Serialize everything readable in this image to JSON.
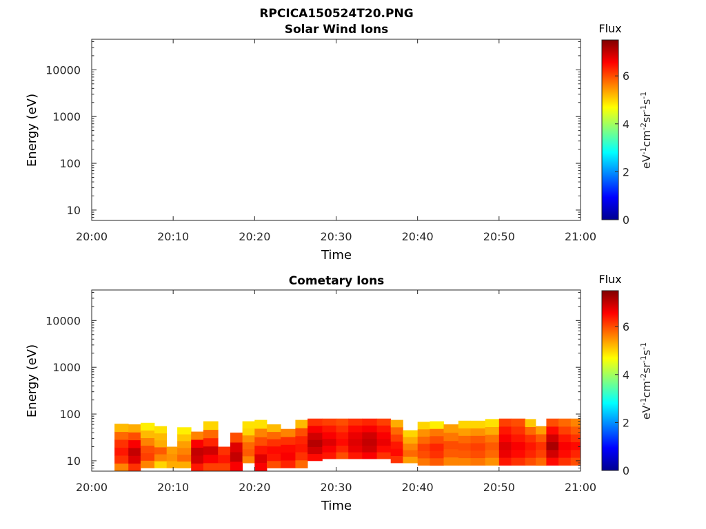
{
  "figure": {
    "title": "RPCICA150524T20.PNG"
  },
  "colormap": {
    "name": "jet",
    "stops": [
      "#00008f",
      "#0000ff",
      "#0080ff",
      "#00ffff",
      "#80ff80",
      "#ffff00",
      "#ff8000",
      "#ff0000",
      "#800000"
    ]
  },
  "chart_data": [
    {
      "type": "heatmap",
      "title": "Solar Wind Ions",
      "xlabel": "Time",
      "ylabel": "Energy (eV)",
      "x_ticks": [
        "20:00",
        "20:10",
        "20:20",
        "20:30",
        "20:40",
        "20:50",
        "21:00"
      ],
      "x_range_minutes": [
        0,
        60
      ],
      "y_scale": "log",
      "y_ticks": [
        "10",
        "100",
        "1000",
        "10000"
      ],
      "ylim": [
        6,
        45000
      ],
      "colorbar": {
        "title": "Flux",
        "label": "eV-1cm-2sr-1s-1",
        "ticks": [
          "0",
          "2",
          "4",
          "6"
        ],
        "range": [
          0,
          7.5
        ]
      },
      "blocks": []
    },
    {
      "type": "heatmap",
      "title": "Cometary Ions",
      "xlabel": "Time",
      "ylabel": "Energy (eV)",
      "x_ticks": [
        "20:00",
        "20:10",
        "20:20",
        "20:30",
        "20:40",
        "20:50",
        "21:00"
      ],
      "x_range_minutes": [
        0,
        60
      ],
      "y_scale": "log",
      "y_ticks": [
        "10",
        "100",
        "1000",
        "10000"
      ],
      "ylim": [
        6,
        45000
      ],
      "colorbar": {
        "title": "Flux",
        "label": "eV-1cm-2sr-1s-1",
        "ticks": [
          "0",
          "2",
          "4",
          "6"
        ],
        "range": [
          0,
          7.5
        ]
      },
      "blocks": [
        {
          "t0": 2.8,
          "t1": 4.5,
          "emin": 6,
          "emax": 62,
          "levels": [
            5.6,
            6.2,
            6.4,
            6.2,
            5.8,
            5.2
          ]
        },
        {
          "t0": 4.5,
          "t1": 6.0,
          "emin": 6,
          "emax": 60,
          "levels": [
            6.2,
            6.8,
            7.0,
            6.6,
            6.0,
            5.3
          ]
        },
        {
          "t0": 6.0,
          "t1": 7.7,
          "emin": 7,
          "emax": 65,
          "levels": [
            5.6,
            6.1,
            6.0,
            5.6,
            5.2,
            4.8
          ]
        },
        {
          "t0": 7.7,
          "t1": 9.2,
          "emin": 7,
          "emax": 55,
          "levels": [
            5.0,
            5.6,
            5.9,
            5.3,
            5.2,
            4.9
          ]
        },
        {
          "t0": 9.2,
          "t1": 10.5,
          "emin": 7,
          "emax": 20,
          "levels": [
            5.3,
            5.5,
            5.4
          ]
        },
        {
          "t0": 10.5,
          "t1": 12.2,
          "emin": 7,
          "emax": 52,
          "levels": [
            5.3,
            5.8,
            5.6,
            5.4,
            5.1,
            4.8
          ]
        },
        {
          "t0": 12.2,
          "t1": 13.7,
          "emin": 6,
          "emax": 42,
          "levels": [
            6.4,
            6.9,
            7.0,
            6.6,
            5.6
          ]
        },
        {
          "t0": 13.7,
          "t1": 15.5,
          "emin": 6,
          "emax": 70,
          "levels": [
            6.1,
            6.6,
            6.9,
            6.3,
            5.8,
            5.0
          ]
        },
        {
          "t0": 15.5,
          "t1": 17.0,
          "emin": 6,
          "emax": 20,
          "levels": [
            6.1,
            6.4,
            6.2
          ]
        },
        {
          "t0": 17.0,
          "t1": 18.5,
          "emin": 6,
          "emax": 40,
          "levels": [
            6.6,
            7.0,
            6.8,
            6.0
          ]
        },
        {
          "t0": 18.5,
          "t1": 20.0,
          "emin": 9,
          "emax": 70,
          "levels": [
            5.6,
            5.9,
            5.8,
            5.5,
            5.0,
            4.9
          ]
        },
        {
          "t0": 20.0,
          "t1": 21.5,
          "emin": 6,
          "emax": 75,
          "levels": [
            6.6,
            6.8,
            6.4,
            6.0,
            5.6,
            4.9
          ]
        },
        {
          "t0": 21.5,
          "t1": 23.2,
          "emin": 7,
          "emax": 60,
          "levels": [
            6.0,
            6.4,
            6.5,
            6.2,
            5.8,
            5.2
          ]
        },
        {
          "t0": 23.2,
          "t1": 25.0,
          "emin": 7,
          "emax": 48,
          "levels": [
            6.3,
            6.6,
            6.5,
            6.2,
            5.6
          ]
        },
        {
          "t0": 25.0,
          "t1": 26.5,
          "emin": 7,
          "emax": 75,
          "levels": [
            5.8,
            6.2,
            6.4,
            6.3,
            6.0,
            5.2
          ]
        },
        {
          "t0": 26.5,
          "t1": 28.3,
          "emin": 10,
          "emax": 80,
          "levels": [
            6.5,
            6.9,
            7.1,
            6.9,
            6.6,
            6.2
          ]
        },
        {
          "t0": 28.3,
          "t1": 30.0,
          "emin": 11,
          "emax": 80,
          "levels": [
            6.4,
            6.6,
            6.8,
            6.6,
            6.4,
            6.1
          ]
        },
        {
          "t0": 30.0,
          "t1": 31.5,
          "emin": 11,
          "emax": 80,
          "levels": [
            6.0,
            6.3,
            6.5,
            6.4,
            6.2,
            6.0
          ]
        },
        {
          "t0": 31.5,
          "t1": 33.2,
          "emin": 11,
          "emax": 80,
          "levels": [
            6.4,
            6.7,
            6.8,
            6.7,
            6.5,
            6.2
          ]
        },
        {
          "t0": 33.2,
          "t1": 35.0,
          "emin": 11,
          "emax": 80,
          "levels": [
            6.6,
            6.9,
            7.0,
            6.9,
            6.6,
            6.3
          ]
        },
        {
          "t0": 35.0,
          "t1": 36.7,
          "emin": 11,
          "emax": 80,
          "levels": [
            6.2,
            6.5,
            6.7,
            6.6,
            6.4,
            6.1
          ]
        },
        {
          "t0": 36.7,
          "t1": 38.2,
          "emin": 9,
          "emax": 75,
          "levels": [
            6.2,
            6.5,
            6.4,
            6.1,
            5.8,
            5.3
          ]
        },
        {
          "t0": 38.2,
          "t1": 40.0,
          "emin": 9,
          "emax": 45,
          "levels": [
            5.4,
            5.8,
            5.6,
            5.3,
            5.0
          ]
        },
        {
          "t0": 40.0,
          "t1": 41.5,
          "emin": 8,
          "emax": 68,
          "levels": [
            5.7,
            6.0,
            6.1,
            5.8,
            5.5,
            5.0
          ]
        },
        {
          "t0": 41.5,
          "t1": 43.2,
          "emin": 8,
          "emax": 70,
          "levels": [
            5.9,
            6.2,
            6.3,
            6.0,
            5.7,
            4.8
          ]
        },
        {
          "t0": 43.2,
          "t1": 45.0,
          "emin": 8,
          "emax": 60,
          "levels": [
            5.6,
            5.9,
            6.0,
            5.7,
            5.4
          ]
        },
        {
          "t0": 45.0,
          "t1": 46.5,
          "emin": 8,
          "emax": 72,
          "levels": [
            5.6,
            5.9,
            6.0,
            5.8,
            5.4,
            5.0
          ]
        },
        {
          "t0": 46.5,
          "t1": 48.3,
          "emin": 8,
          "emax": 72,
          "levels": [
            5.7,
            6.0,
            6.1,
            5.9,
            5.5,
            5.0
          ]
        },
        {
          "t0": 48.3,
          "t1": 50.0,
          "emin": 8,
          "emax": 78,
          "levels": [
            5.5,
            5.8,
            5.9,
            5.7,
            5.3,
            4.9
          ]
        },
        {
          "t0": 50.0,
          "t1": 51.5,
          "emin": 8,
          "emax": 80,
          "levels": [
            6.4,
            6.7,
            6.8,
            6.6,
            6.4,
            6.1
          ]
        },
        {
          "t0": 51.5,
          "t1": 53.2,
          "emin": 8,
          "emax": 80,
          "levels": [
            6.2,
            6.5,
            6.6,
            6.4,
            6.2,
            6.0
          ]
        },
        {
          "t0": 53.2,
          "t1": 54.5,
          "emin": 8,
          "emax": 78,
          "levels": [
            6.0,
            6.3,
            6.4,
            6.2,
            5.8,
            5.1
          ]
        },
        {
          "t0": 54.5,
          "t1": 55.8,
          "emin": 8,
          "emax": 55,
          "levels": [
            5.8,
            6.1,
            6.2,
            5.9,
            5.4
          ]
        },
        {
          "t0": 55.8,
          "t1": 57.3,
          "emin": 8,
          "emax": 80,
          "levels": [
            6.5,
            6.9,
            7.2,
            6.9,
            6.5,
            6.0
          ]
        },
        {
          "t0": 57.3,
          "t1": 58.8,
          "emin": 8,
          "emax": 80,
          "levels": [
            6.2,
            6.5,
            6.6,
            6.4,
            6.1,
            5.8
          ]
        },
        {
          "t0": 58.8,
          "t1": 60.0,
          "emin": 8,
          "emax": 80,
          "levels": [
            6.0,
            6.3,
            6.5,
            6.2,
            5.9,
            5.6
          ]
        }
      ]
    }
  ]
}
